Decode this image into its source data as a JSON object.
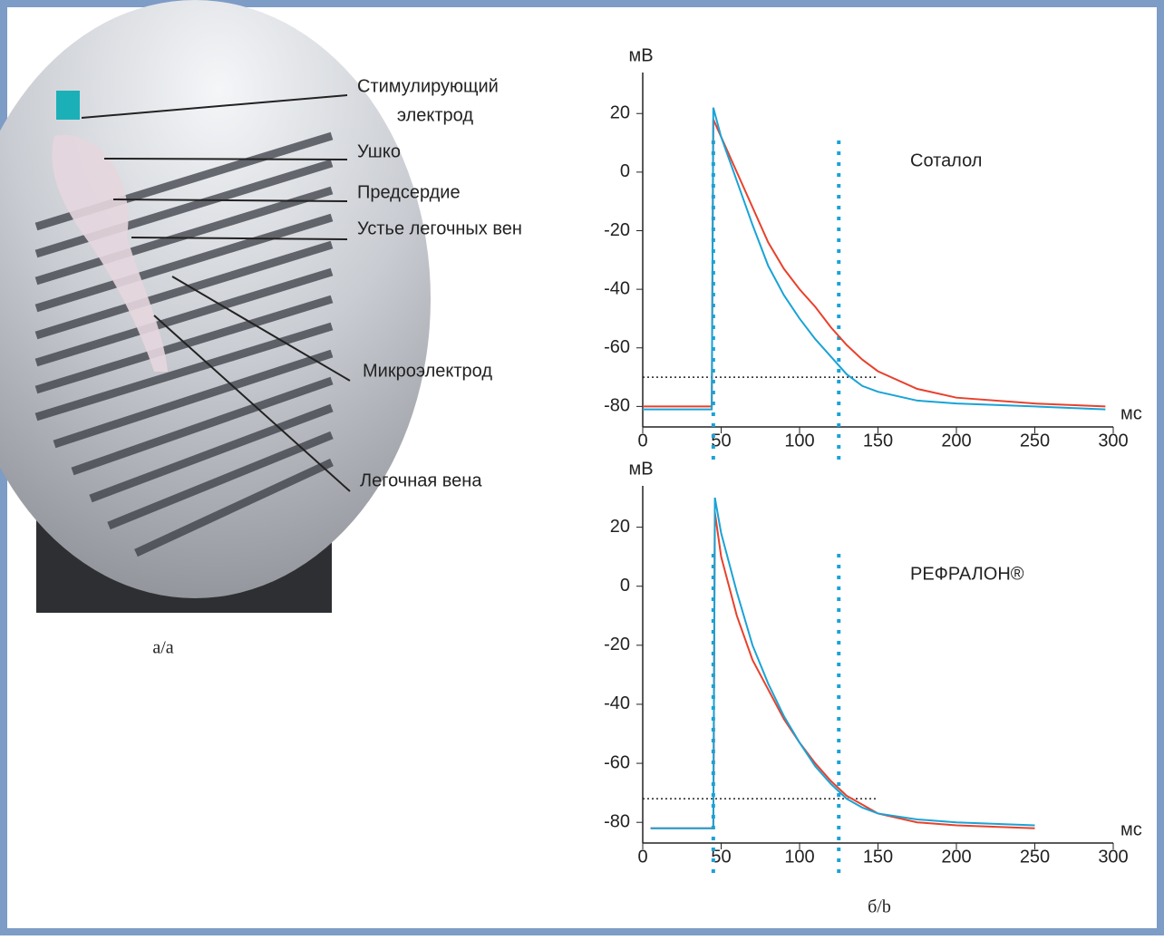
{
  "chart_data": [
    {
      "type": "line",
      "ylabel": "мВ",
      "xlabel": "мс",
      "annotation": "Соталол",
      "xlim": [
        0,
        300
      ],
      "ylim": [
        -87,
        34
      ],
      "xticks": [
        0,
        50,
        100,
        150,
        200,
        250,
        300
      ],
      "yticks": [
        -80,
        -60,
        -40,
        -20,
        0,
        20
      ],
      "hline": -70,
      "vlines": [
        45,
        125
      ],
      "x": [
        0,
        44,
        45,
        50,
        60,
        70,
        80,
        90,
        100,
        110,
        120,
        130,
        140,
        150,
        175,
        200,
        250,
        295
      ],
      "series": [
        {
          "color": "#e8412c",
          "values": [
            -80,
            -80,
            18,
            12,
            0,
            -12,
            -24,
            -33,
            -40,
            -46,
            -53,
            -59,
            -64,
            -68,
            -74,
            -77,
            -79,
            -80
          ]
        },
        {
          "color": "#1aa3d6",
          "values": [
            -81,
            -81,
            22,
            12,
            -3,
            -18,
            -32,
            -42,
            -50,
            -57,
            -63,
            -69,
            -73,
            -75,
            -78,
            -79,
            -80,
            -81
          ]
        }
      ]
    },
    {
      "type": "line",
      "ylabel": "мВ",
      "xlabel": "мс",
      "annotation": "РЕФРАЛОН®",
      "xlim": [
        0,
        300
      ],
      "ylim": [
        -87,
        34
      ],
      "xticks": [
        0,
        50,
        100,
        150,
        200,
        250,
        300
      ],
      "yticks": [
        -80,
        -60,
        -40,
        -20,
        0,
        20
      ],
      "hline": -72,
      "vlines": [
        45,
        125
      ],
      "x": [
        5,
        45,
        46,
        50,
        60,
        70,
        80,
        90,
        100,
        110,
        120,
        130,
        140,
        150,
        175,
        200,
        250
      ],
      "series": [
        {
          "color": "#e8412c",
          "values": [
            -82,
            -82,
            25,
            10,
            -10,
            -25,
            -35,
            -45,
            -53,
            -60,
            -66,
            -71,
            -74,
            -77,
            -80,
            -81,
            -82
          ]
        },
        {
          "color": "#1aa3d6",
          "values": [
            -82,
            -82,
            30,
            18,
            -2,
            -20,
            -33,
            -44,
            -53,
            -61,
            -67,
            -72,
            -75,
            -77,
            -79,
            -80,
            -81
          ]
        }
      ]
    }
  ],
  "photo": {
    "labels": [
      "Стимулирующий",
      "электрод",
      "Ушко",
      "Предсердие",
      "Устье легочных вен",
      "Микроэлектрод",
      "Легочная вена"
    ],
    "caption": "а/a"
  },
  "caption_b": "б/b"
}
